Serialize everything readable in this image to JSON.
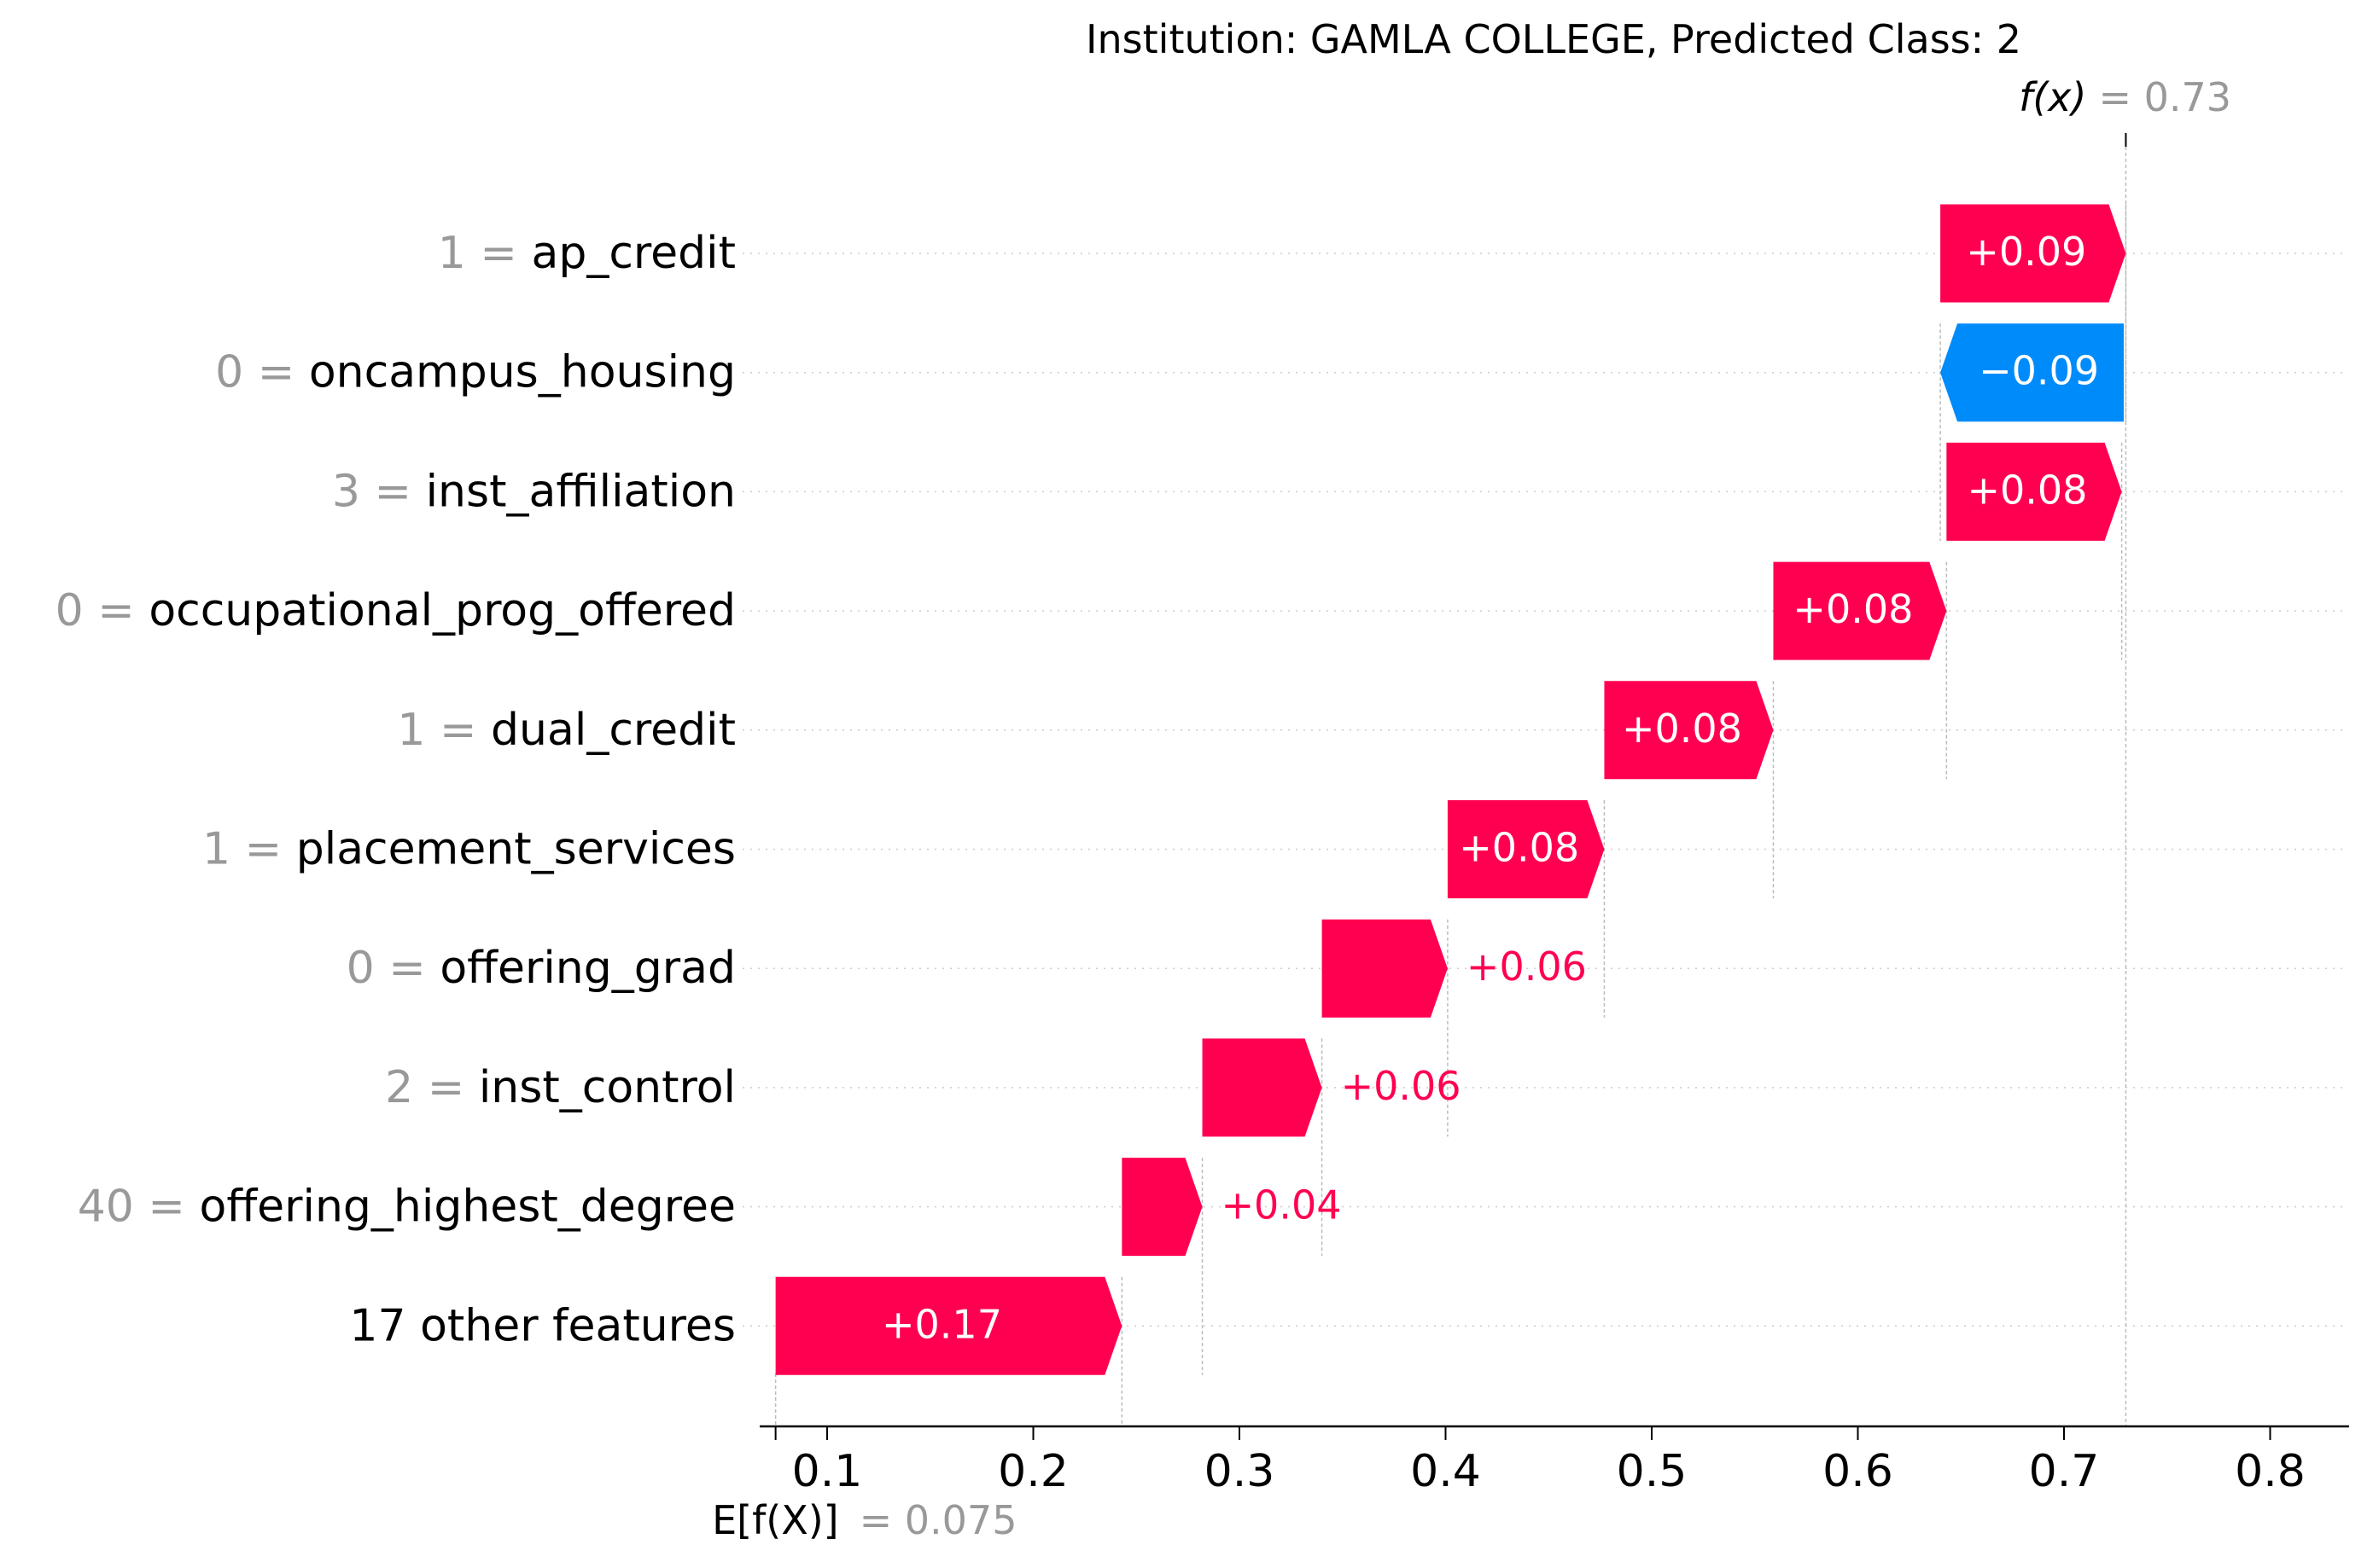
{
  "chart_data": {
    "type": "waterfall",
    "title": "Institution: GAMLA COLLEGE, Predicted Class: 2",
    "base_value": 0.075,
    "base_label": "E[f(X)]",
    "base_value_text": "= 0.075",
    "output_value": 0.73,
    "output_label": "f(x)",
    "output_value_text": "= 0.73",
    "xlim": [
      0.075,
      0.85
    ],
    "xticks": [
      0.1,
      0.2,
      0.3,
      0.4,
      0.5,
      0.6,
      0.7,
      0.8
    ],
    "xtick_labels": [
      "0.1",
      "0.2",
      "0.3",
      "0.4",
      "0.5",
      "0.6",
      "0.7",
      "0.8"
    ],
    "colors": {
      "positive": "#ff0051",
      "negative": "#008bfb",
      "value_gray": "#999999",
      "text": "#000000",
      "grid": "#cccccc"
    },
    "features": [
      {
        "value": "1",
        "name": "ap_credit",
        "contribution": 0.09,
        "label": "+0.09",
        "start": 0.64,
        "end": 0.73
      },
      {
        "value": "0",
        "name": "oncampus_housing",
        "contribution": -0.09,
        "label": "−0.09",
        "start": 0.729,
        "end": 0.64
      },
      {
        "value": "3",
        "name": "inst_affiliation",
        "contribution": 0.08,
        "label": "+0.08",
        "start": 0.643,
        "end": 0.728
      },
      {
        "value": "0",
        "name": "occupational_prog_offered",
        "contribution": 0.08,
        "label": "+0.08",
        "start": 0.559,
        "end": 0.643
      },
      {
        "value": "1",
        "name": "dual_credit",
        "contribution": 0.08,
        "label": "+0.08",
        "start": 0.477,
        "end": 0.559
      },
      {
        "value": "1",
        "name": "placement_services",
        "contribution": 0.08,
        "label": "+0.08",
        "start": 0.401,
        "end": 0.477
      },
      {
        "value": "0",
        "name": "offering_grad",
        "contribution": 0.06,
        "label": "+0.06",
        "start": 0.34,
        "end": 0.401
      },
      {
        "value": "2",
        "name": "inst_control",
        "contribution": 0.06,
        "label": "+0.06",
        "start": 0.282,
        "end": 0.34
      },
      {
        "value": "40",
        "name": "offering_highest_degree",
        "contribution": 0.04,
        "label": "+0.04",
        "start": 0.243,
        "end": 0.282
      },
      {
        "value": "",
        "name": "17 other features",
        "contribution": 0.17,
        "label": "+0.17",
        "start": 0.075,
        "end": 0.243
      }
    ]
  }
}
